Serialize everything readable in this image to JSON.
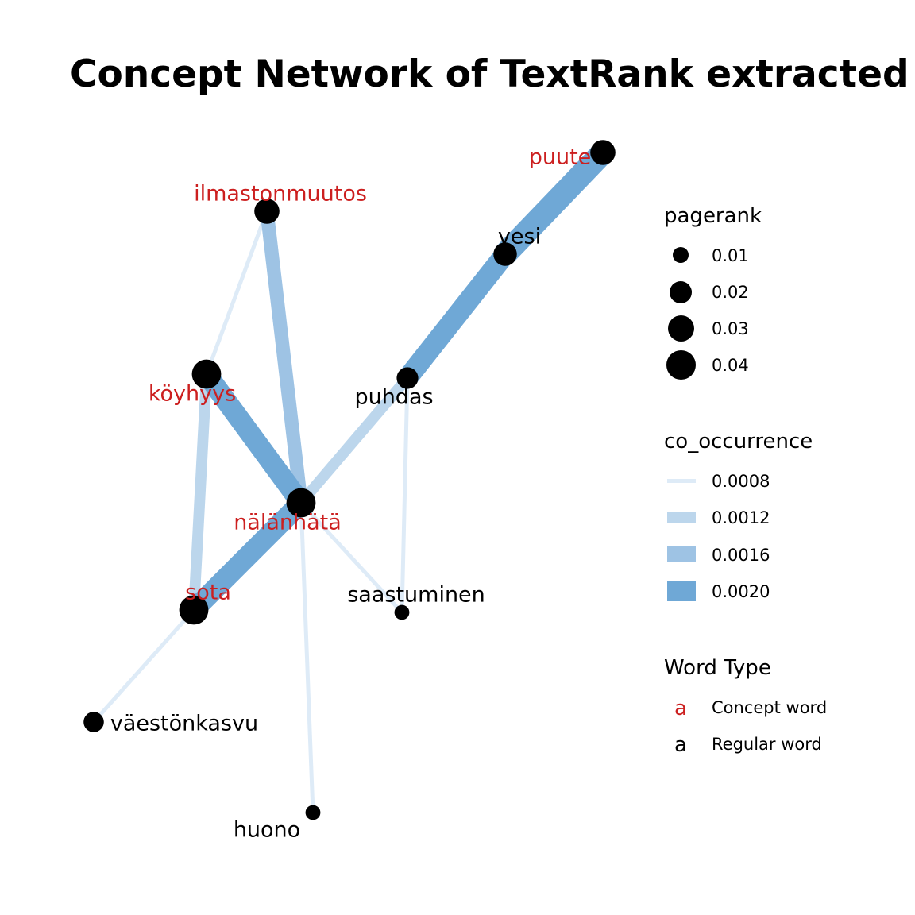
{
  "title": "Concept Network of TextRank extracted",
  "colors": {
    "concept": "#cc1f1f",
    "regular": "#000000",
    "edge_0008": "#deebf7",
    "edge_0012": "#bcd6ec",
    "edge_0016": "#9ec3e4",
    "edge_0020": "#6fa8d6"
  },
  "nodes": [
    {
      "id": "puute",
      "label": "puute",
      "type": "concept",
      "pagerank": 0.025
    },
    {
      "id": "ilmastonmuutos",
      "label": "ilmastonmuutos",
      "type": "concept",
      "pagerank": 0.025
    },
    {
      "id": "vesi",
      "label": "vesi",
      "type": "regular",
      "pagerank": 0.02
    },
    {
      "id": "koyhyys",
      "label": "köyhyys",
      "type": "concept",
      "pagerank": 0.04
    },
    {
      "id": "puhdas",
      "label": "puhdas",
      "type": "regular",
      "pagerank": 0.015
    },
    {
      "id": "nalanhata",
      "label": "nälänhätä",
      "type": "concept",
      "pagerank": 0.04
    },
    {
      "id": "sota",
      "label": "sota",
      "type": "concept",
      "pagerank": 0.04
    },
    {
      "id": "saastuminen",
      "label": "saastuminen",
      "type": "regular",
      "pagerank": 0.003
    },
    {
      "id": "vaestonkasvu",
      "label": "väestönkasvu",
      "type": "regular",
      "pagerank": 0.012
    },
    {
      "id": "huono",
      "label": "huono",
      "type": "regular",
      "pagerank": 0.003
    }
  ],
  "edges": [
    {
      "from": "ilmastonmuutos",
      "to": "koyhyys",
      "co_occurrence": 0.0008
    },
    {
      "from": "ilmastonmuutos",
      "to": "nalanhata",
      "co_occurrence": 0.0015
    },
    {
      "from": "koyhyys",
      "to": "sota",
      "co_occurrence": 0.0013
    },
    {
      "from": "koyhyys",
      "to": "nalanhata",
      "co_occurrence": 0.002
    },
    {
      "from": "sota",
      "to": "nalanhata",
      "co_occurrence": 0.002
    },
    {
      "from": "nalanhata",
      "to": "puhdas",
      "co_occurrence": 0.0013
    },
    {
      "from": "puhdas",
      "to": "vesi",
      "co_occurrence": 0.002
    },
    {
      "from": "vesi",
      "to": "puute",
      "co_occurrence": 0.0022
    },
    {
      "from": "puhdas",
      "to": "saastuminen",
      "co_occurrence": 0.0008
    },
    {
      "from": "nalanhata",
      "to": "saastuminen",
      "co_occurrence": 0.0008
    },
    {
      "from": "nalanhata",
      "to": "huono",
      "co_occurrence": 0.0008
    },
    {
      "from": "sota",
      "to": "vaestonkasvu",
      "co_occurrence": 0.0008
    }
  ],
  "legend": {
    "pagerank": {
      "title": "pagerank",
      "items": [
        {
          "label": "0.01",
          "value": 0.01
        },
        {
          "label": "0.02",
          "value": 0.02
        },
        {
          "label": "0.03",
          "value": 0.03
        },
        {
          "label": "0.04",
          "value": 0.04
        }
      ]
    },
    "co_occurrence": {
      "title": "co_occurrence",
      "items": [
        {
          "label": "0.0008",
          "value": 0.0008
        },
        {
          "label": "0.0012",
          "value": 0.0012
        },
        {
          "label": "0.0016",
          "value": 0.0016
        },
        {
          "label": "0.0020",
          "value": 0.002
        }
      ]
    },
    "word_type": {
      "title": "Word Type",
      "glyph": "a",
      "items": [
        {
          "label": "Concept word",
          "type": "concept"
        },
        {
          "label": "Regular word",
          "type": "regular"
        }
      ]
    }
  }
}
